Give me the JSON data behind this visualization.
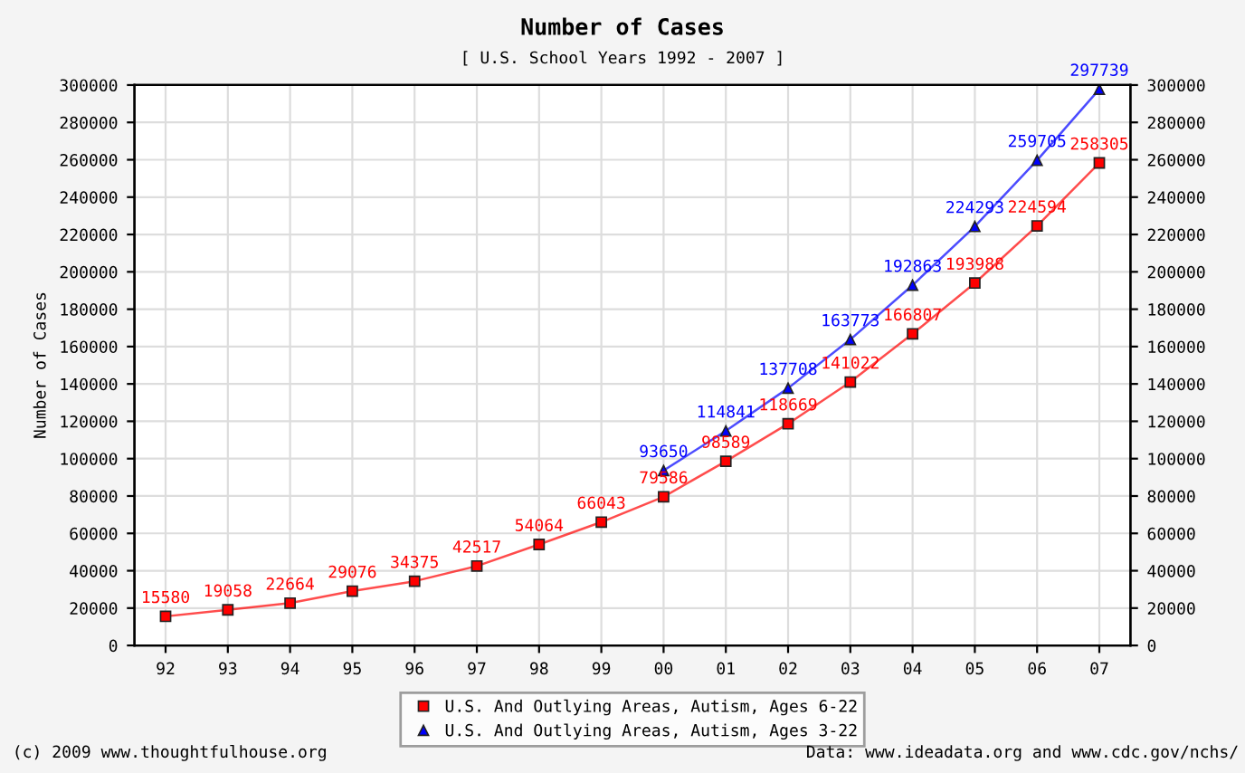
{
  "chart_data": {
    "type": "line",
    "title": "Number of Cases",
    "subtitle": "[ U.S. School Years 1992 - 2007 ]",
    "ylabel": "Number of Cases",
    "categories": [
      "92",
      "93",
      "94",
      "95",
      "96",
      "97",
      "98",
      "99",
      "00",
      "01",
      "02",
      "03",
      "04",
      "05",
      "06",
      "07"
    ],
    "series": [
      {
        "name": "U.S. And Outlying Areas, Autism, Ages 6-22",
        "color": "#ff0000",
        "marker": "square",
        "values": [
          15580,
          19058,
          22664,
          29076,
          34375,
          42517,
          54064,
          66043,
          79586,
          98589,
          118669,
          141022,
          166807,
          193988,
          224594,
          258305
        ]
      },
      {
        "name": "U.S. And Outlying Areas, Autism, Ages 3-22",
        "color": "#0000ff",
        "marker": "triangle",
        "values": [
          null,
          null,
          null,
          null,
          null,
          null,
          null,
          null,
          93650,
          114841,
          137708,
          163773,
          192863,
          224293,
          259705,
          297739
        ]
      }
    ],
    "ylim": [
      0,
      300000
    ],
    "yticks": [
      0,
      20000,
      40000,
      60000,
      80000,
      100000,
      120000,
      140000,
      160000,
      180000,
      200000,
      220000,
      240000,
      260000,
      280000,
      300000
    ],
    "y2lim": [
      0,
      300000
    ],
    "y2ticks": [
      0,
      20000,
      40000,
      60000,
      80000,
      100000,
      120000,
      140000,
      160000,
      180000,
      200000,
      220000,
      240000,
      260000,
      280000,
      300000
    ],
    "grid": true,
    "legend": "bottom",
    "data_labels": true,
    "annotations": [
      "(c) 2009 www.thoughtfulhouse.org",
      "Data: www.ideadata.org and www.cdc.gov/nchs/"
    ]
  }
}
